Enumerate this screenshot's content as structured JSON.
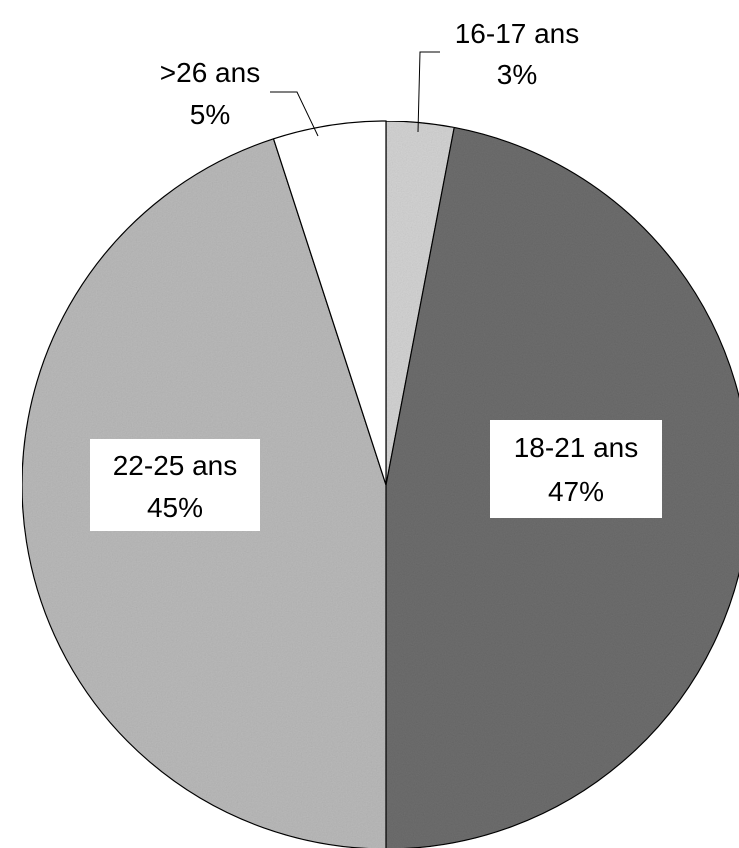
{
  "chart_data": {
    "type": "pie",
    "start_angle_deg": 0,
    "direction": "clockwise",
    "categories": [
      "16-17 ans",
      "18-21 ans",
      "22-25 ans",
      ">26 ans"
    ],
    "values": [
      3,
      47,
      45,
      5
    ],
    "value_labels": [
      "3%",
      "47%",
      "45%",
      "5%"
    ],
    "colors": [
      "#d2d2d2",
      "#6e6e6e",
      "#b9b9b9",
      "#ffffff"
    ],
    "label_placement": [
      "outside",
      "inside",
      "inside",
      "outside"
    ],
    "title": "",
    "legend": "none"
  }
}
